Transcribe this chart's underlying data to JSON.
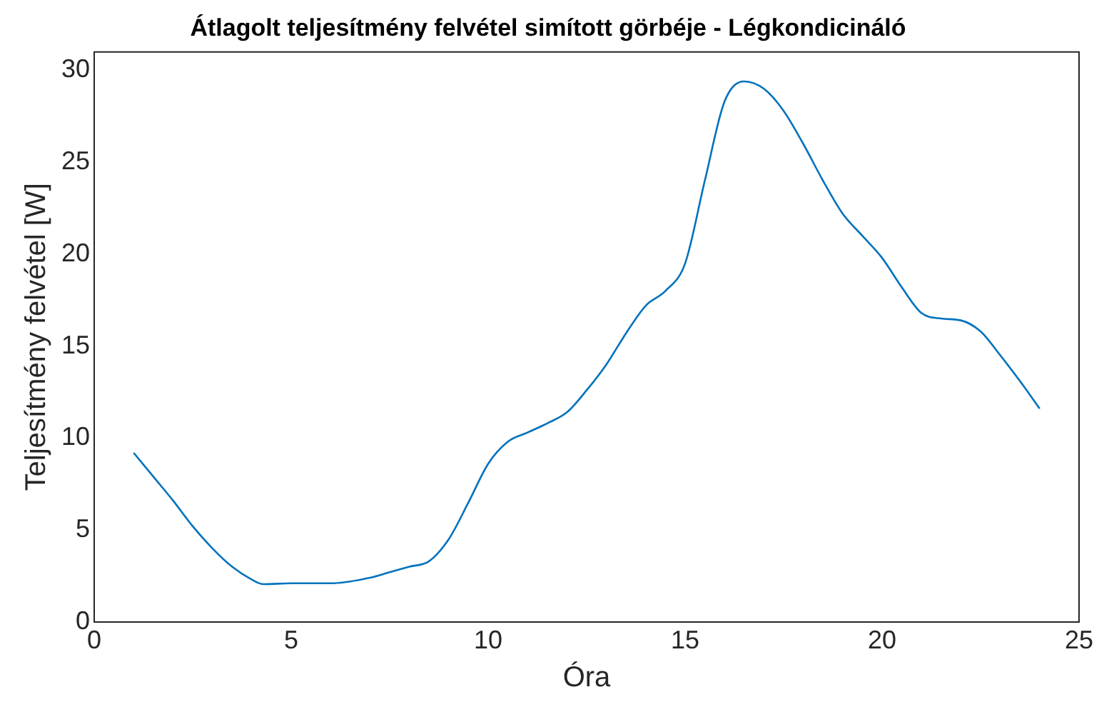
{
  "chart_data": {
    "type": "line",
    "title": "Átlagolt teljesítmény felvétel simított görbéje - Légkondicináló",
    "xlabel": "Óra",
    "ylabel": "Teljesítmény felvétel [W]",
    "x": [
      1,
      1.5,
      2,
      2.5,
      3,
      3.5,
      4,
      4.3,
      5,
      6,
      7,
      7.5,
      8,
      8.5,
      9,
      9.5,
      10,
      10.5,
      11,
      11.5,
      12,
      12.5,
      13,
      13.5,
      14,
      14.5,
      15,
      15.5,
      16,
      16.5,
      17,
      17.5,
      18,
      18.5,
      19,
      19.5,
      20,
      20.5,
      21,
      21.5,
      22,
      22.5,
      23,
      23.5,
      24
    ],
    "series": [
      {
        "color": "#0072bd",
        "values": [
          9.2,
          7.9,
          6.6,
          5.2,
          4.0,
          3.0,
          2.3,
          2.05,
          2.1,
          2.1,
          2.4,
          2.7,
          3.0,
          3.3,
          4.5,
          6.5,
          8.6,
          9.8,
          10.3,
          10.8,
          11.4,
          12.6,
          14.0,
          15.7,
          17.2,
          18.0,
          19.5,
          24.0,
          28.3,
          29.4,
          29.0,
          27.8,
          26.0,
          24.0,
          22.2,
          21.0,
          19.8,
          18.2,
          16.8,
          16.5,
          16.4,
          15.8,
          14.5,
          13.1,
          11.6
        ]
      }
    ],
    "xlim": [
      0,
      25
    ],
    "xticks": [
      0,
      5,
      10,
      15,
      20,
      25
    ],
    "ylim": [
      0,
      31
    ],
    "yticks": [
      0,
      5,
      10,
      15,
      20,
      25,
      30
    ],
    "grid": false,
    "legend": false,
    "marker": "none",
    "line_style": "solid"
  }
}
